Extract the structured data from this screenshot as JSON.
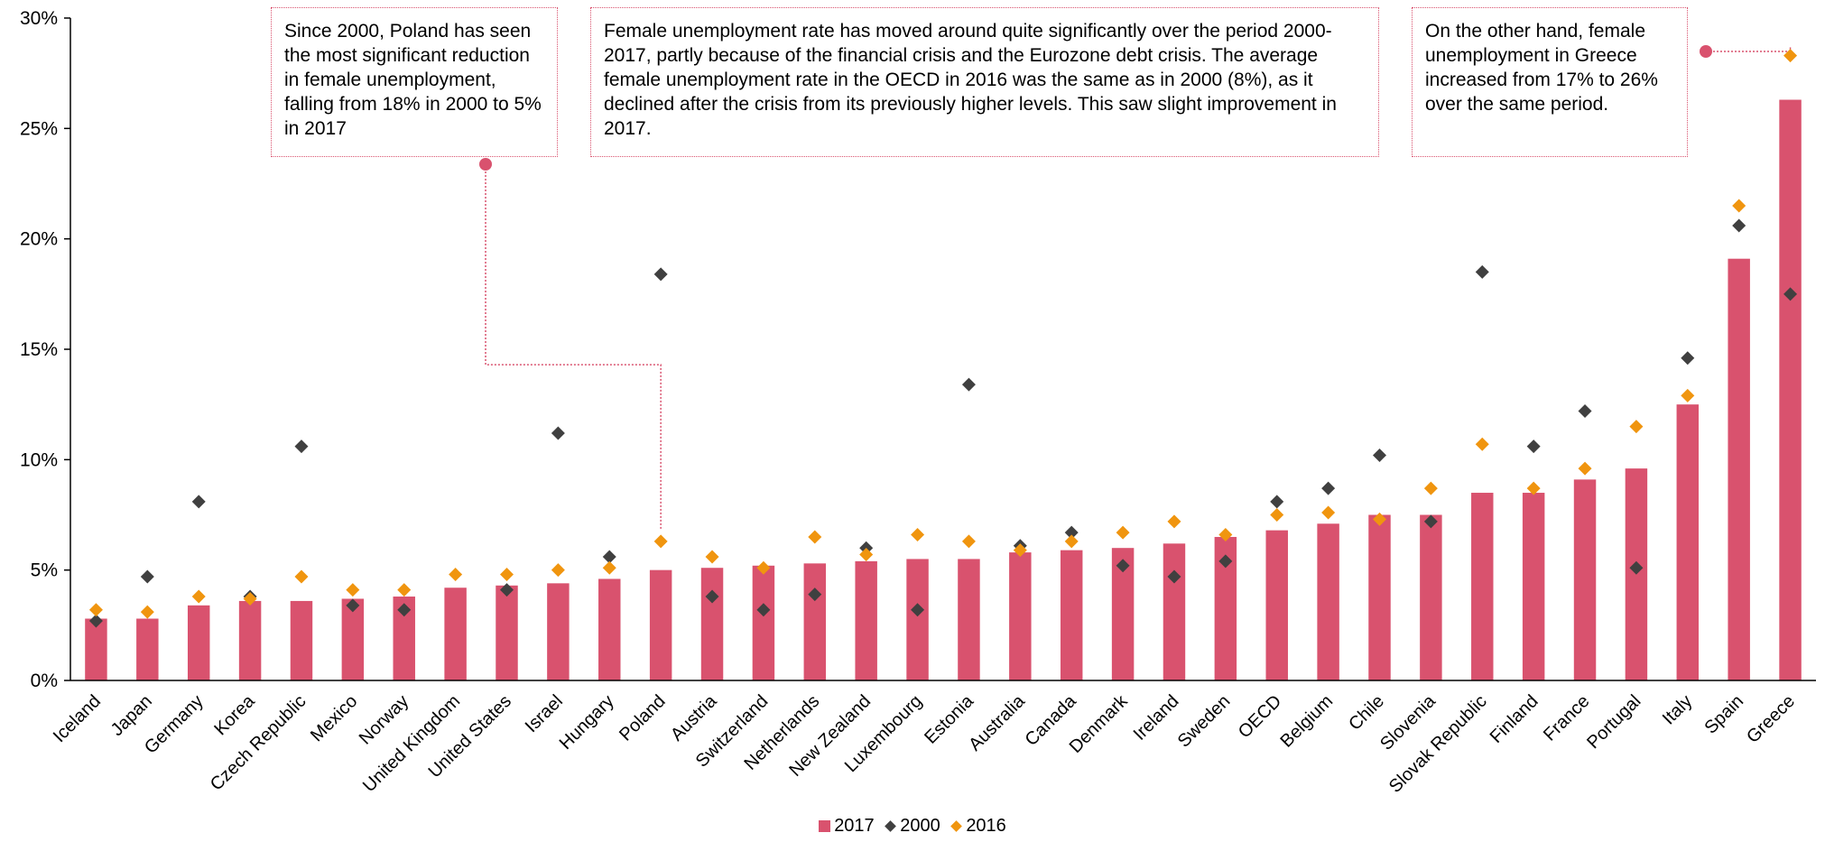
{
  "colors": {
    "bar_2017": "#d9526e",
    "marker_2000": "#404040",
    "marker_2016": "#f0950f",
    "annotation": "#d9526e"
  },
  "annotations": {
    "poland": "Since 2000, Poland has seen the most significant reduction in female unemployment, falling from 18% in 2000 to 5% in 2017",
    "oecd": "Female unemployment rate has moved around quite significantly over the period 2000-2017, partly because of the financial crisis and the Eurozone debt crisis. The average female unemployment rate in the OECD in 2016 was the same as in 2000 (8%), as it declined after the crisis from its previously higher levels. This saw slight improvement in 2017.",
    "greece": "On the other hand, female unemployment in Greece increased from 17% to 26% over the same period."
  },
  "legend": {
    "s2017": "2017",
    "s2000": "2000",
    "s2016": "2016"
  },
  "chart_data": {
    "type": "bar",
    "title": "",
    "xlabel": "",
    "ylabel": "",
    "ylim": [
      0,
      30
    ],
    "yticks": [
      "0%",
      "5%",
      "10%",
      "15%",
      "20%",
      "25%",
      "30%"
    ],
    "grid": false,
    "legend_position": "bottom",
    "categories": [
      "Iceland",
      "Japan",
      "Germany",
      "Korea",
      "Czech Republic",
      "Mexico",
      "Norway",
      "United Kingdom",
      "United States",
      "Israel",
      "Hungary",
      "Poland",
      "Austria",
      "Switzerland",
      "Netherlands",
      "New Zealand",
      "Luxembourg",
      "Estonia",
      "Australia",
      "Canada",
      "Denmark",
      "Ireland",
      "Sweden",
      "OECD",
      "Belgium",
      "Chile",
      "Slovenia",
      "Slovak Republic",
      "Finland",
      "France",
      "Portugal",
      "Italy",
      "Spain",
      "Greece"
    ],
    "series": [
      {
        "name": "2017",
        "kind": "bar",
        "values": [
          2.8,
          2.8,
          3.4,
          3.6,
          3.6,
          3.7,
          3.8,
          4.2,
          4.3,
          4.4,
          4.6,
          5.0,
          5.1,
          5.2,
          5.3,
          5.4,
          5.5,
          5.5,
          5.8,
          5.9,
          6.0,
          6.2,
          6.5,
          6.8,
          7.1,
          7.5,
          7.5,
          8.5,
          8.5,
          9.1,
          9.6,
          12.5,
          19.1,
          26.3
        ]
      },
      {
        "name": "2000",
        "kind": "marker",
        "values": [
          2.7,
          4.7,
          8.1,
          3.8,
          10.6,
          3.4,
          3.2,
          null,
          4.1,
          11.2,
          5.6,
          18.4,
          3.8,
          3.2,
          3.9,
          6.0,
          3.2,
          13.4,
          6.1,
          6.7,
          5.2,
          4.7,
          5.4,
          8.1,
          8.7,
          10.2,
          7.2,
          18.5,
          10.6,
          12.2,
          5.1,
          14.6,
          20.6,
          17.5
        ]
      },
      {
        "name": "2016",
        "kind": "marker",
        "values": [
          3.2,
          3.1,
          3.8,
          3.7,
          4.7,
          4.1,
          4.1,
          4.8,
          4.8,
          5.0,
          5.1,
          6.3,
          5.6,
          5.1,
          6.5,
          5.7,
          6.6,
          6.3,
          5.9,
          6.3,
          6.7,
          7.2,
          6.6,
          7.5,
          7.6,
          7.3,
          8.7,
          10.7,
          8.7,
          9.6,
          11.5,
          12.9,
          21.5,
          28.3
        ]
      }
    ]
  }
}
